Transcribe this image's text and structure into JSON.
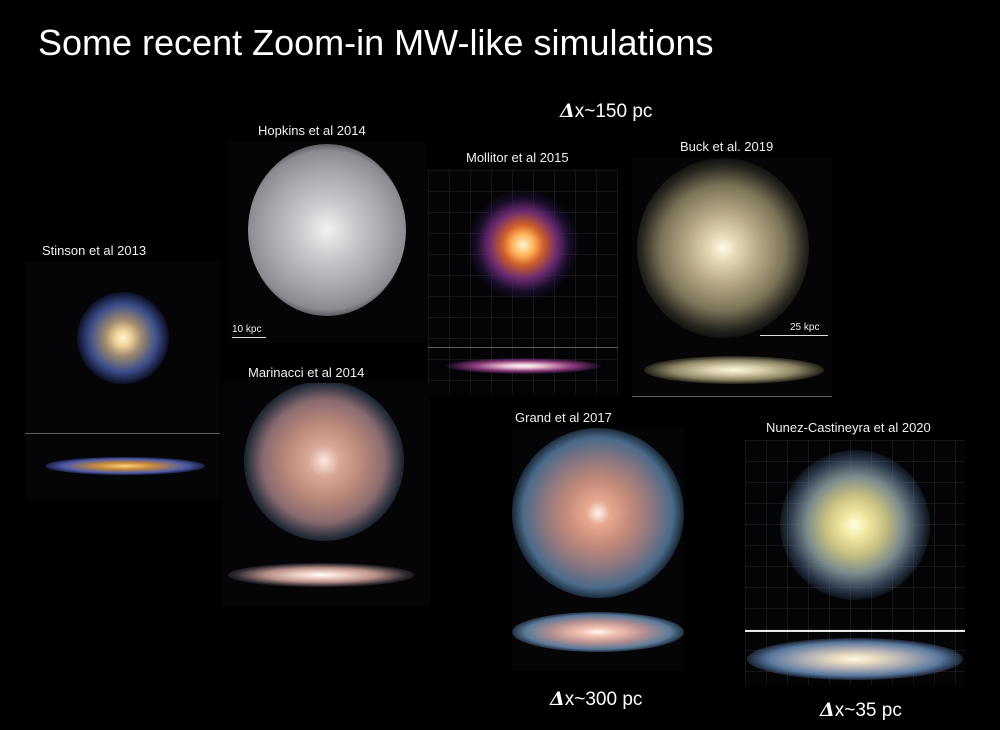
{
  "slide": {
    "title": "Some recent Zoom-in MW-like simulations"
  },
  "resolution": {
    "top": {
      "symbol": "Δ",
      "text": "x~150 pc"
    },
    "middle": {
      "symbol": "Δ",
      "text": "x~300 pc"
    },
    "right": {
      "symbol": "Δ",
      "text": "x~35 pc"
    }
  },
  "simulations": {
    "stinson": {
      "label": "Stinson et al 2013"
    },
    "hopkins": {
      "label": "Hopkins et al 2014",
      "scale": "10 kpc"
    },
    "mollitor": {
      "label": "Mollitor et al 2015"
    },
    "buck": {
      "label": "Buck et al. 2019",
      "scale": "25 kpc"
    },
    "marinacci": {
      "label": "Marinacci et al 2014"
    },
    "grand": {
      "label": "Grand et al 2017"
    },
    "nunez": {
      "label": "Nunez-Castineyra et al 2020"
    }
  },
  "colors": {
    "background": "#000000",
    "text": "#ffffff"
  }
}
